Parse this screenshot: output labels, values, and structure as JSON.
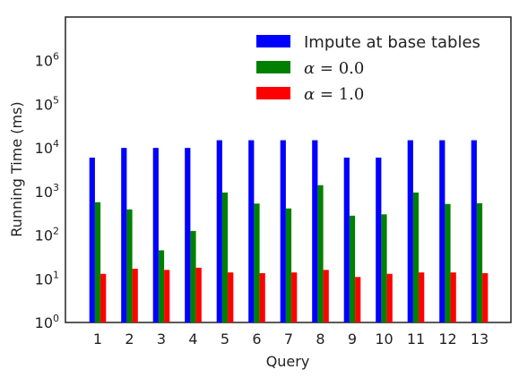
{
  "chart_data": {
    "type": "bar",
    "xlabel": "Query",
    "ylabel": "Running Time (ms)",
    "yscale": "log",
    "ylim": [
      1,
      10000000
    ],
    "yticks": [
      {
        "value": 1,
        "base": "10",
        "exp": "0"
      },
      {
        "value": 10,
        "base": "10",
        "exp": "1"
      },
      {
        "value": 100,
        "base": "10",
        "exp": "2"
      },
      {
        "value": 1000,
        "base": "10",
        "exp": "3"
      },
      {
        "value": 10000,
        "base": "10",
        "exp": "4"
      },
      {
        "value": 100000,
        "base": "10",
        "exp": "5"
      },
      {
        "value": 1000000,
        "base": "10",
        "exp": "6"
      }
    ],
    "categories": [
      "1",
      "2",
      "3",
      "4",
      "5",
      "6",
      "7",
      "8",
      "9",
      "10",
      "11",
      "12",
      "13"
    ],
    "grid": false,
    "legend_position": "top-right",
    "series": [
      {
        "name": "Impute at base tables",
        "color": "#0000ff",
        "values": [
          6000,
          10000,
          10000,
          10000,
          15000,
          15000,
          15000,
          15000,
          6000,
          6000,
          15000,
          15000,
          15000
        ]
      },
      {
        "name": "α = 0.0",
        "color": "#008000",
        "values": [
          570,
          390,
          45,
          125,
          950,
          530,
          410,
          1400,
          280,
          300,
          950,
          520,
          540
        ]
      },
      {
        "name": "α = 1.0",
        "color": "#ff0000",
        "values": [
          13,
          17,
          16,
          18,
          14,
          13.5,
          14,
          16,
          11,
          13,
          14,
          14,
          13.5
        ]
      }
    ],
    "legend": [
      {
        "text": "Impute at base tables",
        "style": "plain"
      },
      {
        "sym": "α",
        "eq": " = ",
        "num": "0.0",
        "style": "math"
      },
      {
        "sym": "α",
        "eq": " = ",
        "num": "1.0",
        "style": "math"
      }
    ]
  }
}
